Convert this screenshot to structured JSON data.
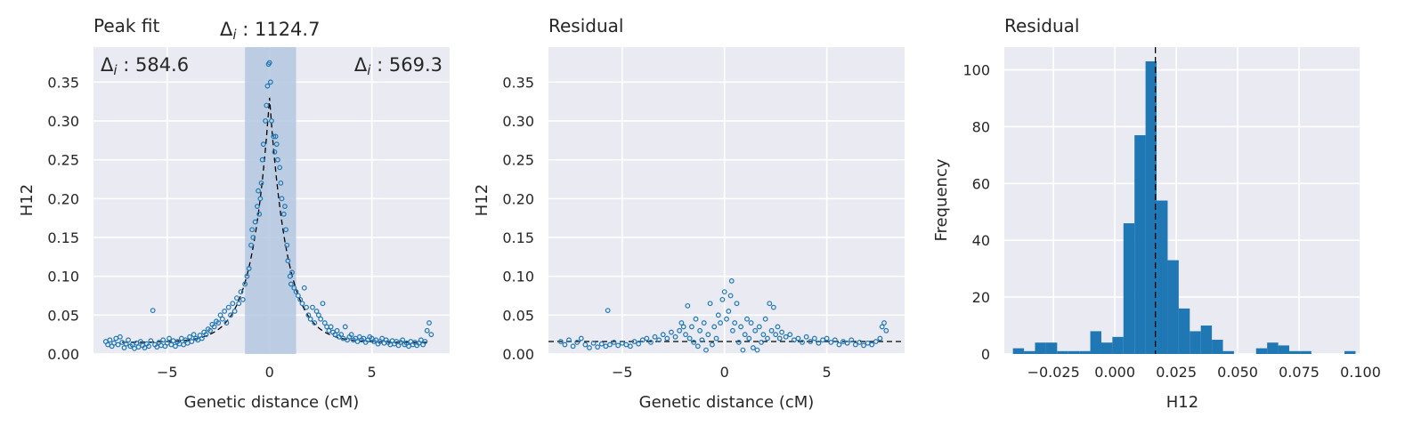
{
  "colors": {
    "background": "#eaeaf2",
    "grid": "#ffffff",
    "point": "#1f77b4",
    "bar": "#1f77b4",
    "fit_line": "#000000",
    "span": "#b4c8e0"
  },
  "chart_data": [
    {
      "type": "scatter",
      "title": "Peak fit",
      "xlabel": "Genetic distance (cM)",
      "ylabel": "H12",
      "xlim": [
        -8.6,
        8.8
      ],
      "ylim": [
        0,
        0.395
      ],
      "xticks": [
        -5,
        0,
        5
      ],
      "xtick_labels": [
        "−5",
        "0",
        "5"
      ],
      "yticks": [
        0,
        0.05,
        0.1,
        0.15,
        0.2,
        0.25,
        0.3,
        0.35
      ],
      "ytick_labels": [
        "0.00",
        "0.05",
        "0.10",
        "0.15",
        "0.20",
        "0.25",
        "0.30",
        "0.35"
      ],
      "grid": true,
      "annotations": {
        "center": {
          "symbol": "Δ",
          "sub": "i",
          "value": " : 1124.7"
        },
        "left": {
          "symbol": "Δ",
          "sub": "i",
          "value": " : 584.6"
        },
        "right": {
          "symbol": "Δ",
          "sub": "i",
          "value": " : 569.3"
        }
      },
      "shaded_span": [
        -1.2,
        1.3
      ],
      "fit_curve": {
        "baseline": 0.015,
        "peak": 0.33,
        "center": 0,
        "scale": 0.85
      },
      "points": [
        [
          -8,
          0.016
        ],
        [
          -7.9,
          0.012
        ],
        [
          -7.8,
          0.018
        ],
        [
          -7.7,
          0.01
        ],
        [
          -7.6,
          0.014
        ],
        [
          -7.5,
          0.02
        ],
        [
          -7.4,
          0.012
        ],
        [
          -7.3,
          0.022
        ],
        [
          -7.2,
          0.015
        ],
        [
          -7.1,
          0.008
        ],
        [
          -7,
          0.013
        ],
        [
          -6.9,
          0.018
        ],
        [
          -6.8,
          0.01
        ],
        [
          -6.7,
          0.012
        ],
        [
          -6.6,
          0.007
        ],
        [
          -6.5,
          0.014
        ],
        [
          -6.4,
          0.009
        ],
        [
          -6.3,
          0.016
        ],
        [
          -6.2,
          0.011
        ],
        [
          -6.1,
          0.008
        ],
        [
          -6,
          0.013
        ],
        [
          -5.9,
          0.01
        ],
        [
          -5.8,
          0.017
        ],
        [
          -5.7,
          0.056
        ],
        [
          -5.6,
          0.012
        ],
        [
          -5.5,
          0.009
        ],
        [
          -5.4,
          0.015
        ],
        [
          -5.3,
          0.011
        ],
        [
          -5.2,
          0.018
        ],
        [
          -5.1,
          0.01
        ],
        [
          -5,
          0.014
        ],
        [
          -4.9,
          0.02
        ],
        [
          -4.8,
          0.012
        ],
        [
          -4.7,
          0.017
        ],
        [
          -4.6,
          0.01
        ],
        [
          -4.5,
          0.016
        ],
        [
          -4.4,
          0.013
        ],
        [
          -4.3,
          0.02
        ],
        [
          -4.2,
          0.012
        ],
        [
          -4.1,
          0.018
        ],
        [
          -4,
          0.014
        ],
        [
          -3.9,
          0.022
        ],
        [
          -3.8,
          0.016
        ],
        [
          -3.7,
          0.025
        ],
        [
          -3.6,
          0.02
        ],
        [
          -3.5,
          0.018
        ],
        [
          -3.4,
          0.024
        ],
        [
          -3.3,
          0.02
        ],
        [
          -3.2,
          0.028
        ],
        [
          -3.1,
          0.025
        ],
        [
          -3,
          0.032
        ],
        [
          -2.9,
          0.03
        ],
        [
          -2.8,
          0.038
        ],
        [
          -2.7,
          0.035
        ],
        [
          -2.6,
          0.042
        ],
        [
          -2.5,
          0.04
        ],
        [
          -2.4,
          0.05
        ],
        [
          -2.3,
          0.045
        ],
        [
          -2.2,
          0.055
        ],
        [
          -2.1,
          0.04
        ],
        [
          -2,
          0.06
        ],
        [
          -1.9,
          0.05
        ],
        [
          -1.8,
          0.065
        ],
        [
          -1.7,
          0.055
        ],
        [
          -1.6,
          0.072
        ],
        [
          -1.5,
          0.065
        ],
        [
          -1.4,
          0.08
        ],
        [
          -1.3,
          0.07
        ],
        [
          -1.2,
          0.09
        ],
        [
          -1.1,
          0.1
        ],
        [
          -1,
          0.11
        ],
        [
          -0.9,
          0.14
        ],
        [
          -0.85,
          0.16
        ],
        [
          -0.8,
          0.15
        ],
        [
          -0.7,
          0.17
        ],
        [
          -0.6,
          0.19
        ],
        [
          -0.55,
          0.21
        ],
        [
          -0.5,
          0.18
        ],
        [
          -0.45,
          0.2
        ],
        [
          -0.4,
          0.22
        ],
        [
          -0.35,
          0.25
        ],
        [
          -0.3,
          0.27
        ],
        [
          -0.2,
          0.3
        ],
        [
          -0.15,
          0.32
        ],
        [
          -0.1,
          0.345
        ],
        [
          -0.05,
          0.373
        ],
        [
          0,
          0.375
        ],
        [
          0.05,
          0.35
        ],
        [
          0.1,
          0.3
        ],
        [
          0.2,
          0.28
        ],
        [
          0.25,
          0.26
        ],
        [
          0.3,
          0.28
        ],
        [
          0.35,
          0.27
        ],
        [
          0.4,
          0.25
        ],
        [
          0.5,
          0.24
        ],
        [
          0.55,
          0.22
        ],
        [
          0.6,
          0.2
        ],
        [
          0.7,
          0.18
        ],
        [
          0.75,
          0.19
        ],
        [
          0.8,
          0.16
        ],
        [
          0.85,
          0.14
        ],
        [
          0.9,
          0.12
        ],
        [
          1,
          0.1
        ],
        [
          1.05,
          0.09
        ],
        [
          1.1,
          0.105
        ],
        [
          1.2,
          0.085
        ],
        [
          1.3,
          0.08
        ],
        [
          1.4,
          0.075
        ],
        [
          1.5,
          0.07
        ],
        [
          1.6,
          0.065
        ],
        [
          1.7,
          0.085
        ],
        [
          1.8,
          0.06
        ],
        [
          1.9,
          0.05
        ],
        [
          2,
          0.045
        ],
        [
          2.1,
          0.06
        ],
        [
          2.2,
          0.04
        ],
        [
          2.3,
          0.055
        ],
        [
          2.4,
          0.05
        ],
        [
          2.5,
          0.045
        ],
        [
          2.6,
          0.065
        ],
        [
          2.7,
          0.04
        ],
        [
          2.8,
          0.035
        ],
        [
          2.9,
          0.03
        ],
        [
          3,
          0.035
        ],
        [
          3.1,
          0.028
        ],
        [
          3.2,
          0.025
        ],
        [
          3.3,
          0.03
        ],
        [
          3.4,
          0.022
        ],
        [
          3.5,
          0.025
        ],
        [
          3.6,
          0.02
        ],
        [
          3.7,
          0.035
        ],
        [
          3.8,
          0.018
        ],
        [
          3.9,
          0.022
        ],
        [
          4,
          0.025
        ],
        [
          4.1,
          0.018
        ],
        [
          4.2,
          0.02
        ],
        [
          4.3,
          0.016
        ],
        [
          4.4,
          0.022
        ],
        [
          4.5,
          0.018
        ],
        [
          4.6,
          0.02
        ],
        [
          4.7,
          0.015
        ],
        [
          4.8,
          0.018
        ],
        [
          4.9,
          0.022
        ],
        [
          5,
          0.02
        ],
        [
          5.1,
          0.016
        ],
        [
          5.2,
          0.018
        ],
        [
          5.3,
          0.013
        ],
        [
          5.4,
          0.016
        ],
        [
          5.5,
          0.02
        ],
        [
          5.6,
          0.014
        ],
        [
          5.7,
          0.018
        ],
        [
          5.8,
          0.015
        ],
        [
          5.9,
          0.012
        ],
        [
          6,
          0.017
        ],
        [
          6.1,
          0.013
        ],
        [
          6.2,
          0.016
        ],
        [
          6.3,
          0.011
        ],
        [
          6.4,
          0.015
        ],
        [
          6.5,
          0.018
        ],
        [
          6.6,
          0.012
        ],
        [
          6.7,
          0.014
        ],
        [
          6.8,
          0.01
        ],
        [
          6.9,
          0.016
        ],
        [
          7,
          0.012
        ],
        [
          7.1,
          0.015
        ],
        [
          7.2,
          0.011
        ],
        [
          7.3,
          0.014
        ],
        [
          7.4,
          0.018
        ],
        [
          7.5,
          0.012
        ],
        [
          7.6,
          0.016
        ],
        [
          7.7,
          0.03
        ],
        [
          7.8,
          0.04
        ],
        [
          7.9,
          0.025
        ]
      ]
    },
    {
      "type": "scatter",
      "title": "Residual",
      "xlabel": "Genetic distance (cM)",
      "ylabel": "H12",
      "xlim": [
        -8.6,
        8.8
      ],
      "ylim": [
        0,
        0.395
      ],
      "xticks": [
        -5,
        0,
        5
      ],
      "xtick_labels": [
        "−5",
        "0",
        "5"
      ],
      "yticks": [
        0,
        0.05,
        0.1,
        0.15,
        0.2,
        0.25,
        0.3,
        0.35
      ],
      "ytick_labels": [
        "0.00",
        "0.05",
        "0.10",
        "0.15",
        "0.20",
        "0.25",
        "0.30",
        "0.35"
      ],
      "grid": true,
      "reference_line_y": 0.016,
      "points": [
        [
          -8,
          0.016
        ],
        [
          -7.8,
          0.012
        ],
        [
          -7.6,
          0.018
        ],
        [
          -7.4,
          0.01
        ],
        [
          -7.2,
          0.015
        ],
        [
          -7,
          0.02
        ],
        [
          -6.8,
          0.012
        ],
        [
          -6.6,
          0.008
        ],
        [
          -6.4,
          0.014
        ],
        [
          -6.2,
          0.009
        ],
        [
          -6,
          0.013
        ],
        [
          -5.8,
          0.01
        ],
        [
          -5.7,
          0.056
        ],
        [
          -5.6,
          0.012
        ],
        [
          -5.4,
          0.015
        ],
        [
          -5.2,
          0.011
        ],
        [
          -5,
          0.014
        ],
        [
          -4.8,
          0.012
        ],
        [
          -4.6,
          0.01
        ],
        [
          -4.4,
          0.016
        ],
        [
          -4.2,
          0.013
        ],
        [
          -4,
          0.018
        ],
        [
          -3.8,
          0.02
        ],
        [
          -3.6,
          0.015
        ],
        [
          -3.4,
          0.022
        ],
        [
          -3.2,
          0.018
        ],
        [
          -3,
          0.025
        ],
        [
          -2.8,
          0.02
        ],
        [
          -2.6,
          0.028
        ],
        [
          -2.4,
          0.022
        ],
        [
          -2.2,
          0.03
        ],
        [
          -2.1,
          0.04
        ],
        [
          -2,
          0.035
        ],
        [
          -1.9,
          0.025
        ],
        [
          -1.8,
          0.062
        ],
        [
          -1.7,
          0.02
        ],
        [
          -1.6,
          0.035
        ],
        [
          -1.5,
          0.015
        ],
        [
          -1.4,
          0.045
        ],
        [
          -1.3,
          0.01
        ],
        [
          -1.2,
          0.03
        ],
        [
          -1.1,
          0.018
        ],
        [
          -1,
          0.04
        ],
        [
          -0.9,
          0.005
        ],
        [
          -0.8,
          0.025
        ],
        [
          -0.7,
          0.065
        ],
        [
          -0.6,
          0.012
        ],
        [
          -0.5,
          0.035
        ],
        [
          -0.4,
          0.02
        ],
        [
          -0.3,
          0.05
        ],
        [
          -0.2,
          0.04
        ],
        [
          -0.1,
          0.07
        ],
        [
          0,
          0.08
        ],
        [
          0.1,
          0.045
        ],
        [
          0.2,
          0.055
        ],
        [
          0.3,
          0.075
        ],
        [
          0.35,
          0.094
        ],
        [
          0.4,
          0.03
        ],
        [
          0.5,
          0.04
        ],
        [
          0.6,
          0.065
        ],
        [
          0.7,
          0.015
        ],
        [
          0.8,
          0.035
        ],
        [
          0.9,
          0.005
        ],
        [
          1,
          0.025
        ],
        [
          1.1,
          0.045
        ],
        [
          1.2,
          0.02
        ],
        [
          1.3,
          0.04
        ],
        [
          1.4,
          0.008
        ],
        [
          1.5,
          0.03
        ],
        [
          1.6,
          0.005
        ],
        [
          1.7,
          0.035
        ],
        [
          1.8,
          0.015
        ],
        [
          1.9,
          0.025
        ],
        [
          2,
          0.045
        ],
        [
          2.1,
          0.02
        ],
        [
          2.2,
          0.065
        ],
        [
          2.3,
          0.03
        ],
        [
          2.4,
          0.06
        ],
        [
          2.5,
          0.025
        ],
        [
          2.6,
          0.035
        ],
        [
          2.7,
          0.02
        ],
        [
          2.8,
          0.028
        ],
        [
          3,
          0.022
        ],
        [
          3.2,
          0.025
        ],
        [
          3.4,
          0.018
        ],
        [
          3.6,
          0.02
        ],
        [
          3.8,
          0.015
        ],
        [
          4,
          0.022
        ],
        [
          4.2,
          0.016
        ],
        [
          4.4,
          0.02
        ],
        [
          4.6,
          0.014
        ],
        [
          4.8,
          0.018
        ],
        [
          5,
          0.02
        ],
        [
          5.2,
          0.015
        ],
        [
          5.4,
          0.018
        ],
        [
          5.6,
          0.012
        ],
        [
          5.8,
          0.016
        ],
        [
          6,
          0.014
        ],
        [
          6.2,
          0.018
        ],
        [
          6.4,
          0.012
        ],
        [
          6.6,
          0.015
        ],
        [
          6.8,
          0.011
        ],
        [
          7,
          0.014
        ],
        [
          7.2,
          0.012
        ],
        [
          7.4,
          0.016
        ],
        [
          7.6,
          0.02
        ],
        [
          7.7,
          0.035
        ],
        [
          7.8,
          0.04
        ],
        [
          7.9,
          0.03
        ]
      ]
    },
    {
      "type": "bar",
      "title": "Residual",
      "xlabel": "H12",
      "ylabel": "Frequency",
      "xlim": [
        -0.045,
        0.1
      ],
      "ylim": [
        0,
        108
      ],
      "xticks": [
        -0.025,
        0,
        0.025,
        0.05,
        0.075,
        0.1
      ],
      "xtick_labels": [
        "−0.025",
        "0.000",
        "0.025",
        "0.050",
        "0.075",
        "0.100"
      ],
      "yticks": [
        0,
        20,
        40,
        60,
        80,
        100
      ],
      "ytick_labels": [
        "0",
        "20",
        "40",
        "60",
        "80",
        "100"
      ],
      "grid": true,
      "reference_line_x": 0.0165,
      "bin_width": 0.0045,
      "bins": [
        {
          "x0": -0.0415,
          "value": 2
        },
        {
          "x0": -0.037,
          "value": 1
        },
        {
          "x0": -0.0325,
          "value": 4
        },
        {
          "x0": -0.028,
          "value": 4
        },
        {
          "x0": -0.0235,
          "value": 1
        },
        {
          "x0": -0.019,
          "value": 1
        },
        {
          "x0": -0.0145,
          "value": 1
        },
        {
          "x0": -0.01,
          "value": 8
        },
        {
          "x0": -0.0055,
          "value": 4
        },
        {
          "x0": -0.001,
          "value": 6
        },
        {
          "x0": 0.0035,
          "value": 46
        },
        {
          "x0": 0.008,
          "value": 77
        },
        {
          "x0": 0.0125,
          "value": 103
        },
        {
          "x0": 0.017,
          "value": 54
        },
        {
          "x0": 0.0215,
          "value": 33
        },
        {
          "x0": 0.026,
          "value": 16
        },
        {
          "x0": 0.0305,
          "value": 8
        },
        {
          "x0": 0.035,
          "value": 10
        },
        {
          "x0": 0.0395,
          "value": 5
        },
        {
          "x0": 0.044,
          "value": 1
        },
        {
          "x0": 0.0575,
          "value": 2
        },
        {
          "x0": 0.062,
          "value": 4
        },
        {
          "x0": 0.0665,
          "value": 3
        },
        {
          "x0": 0.071,
          "value": 1
        },
        {
          "x0": 0.0755,
          "value": 1
        },
        {
          "x0": 0.0935,
          "value": 1
        }
      ]
    }
  ]
}
